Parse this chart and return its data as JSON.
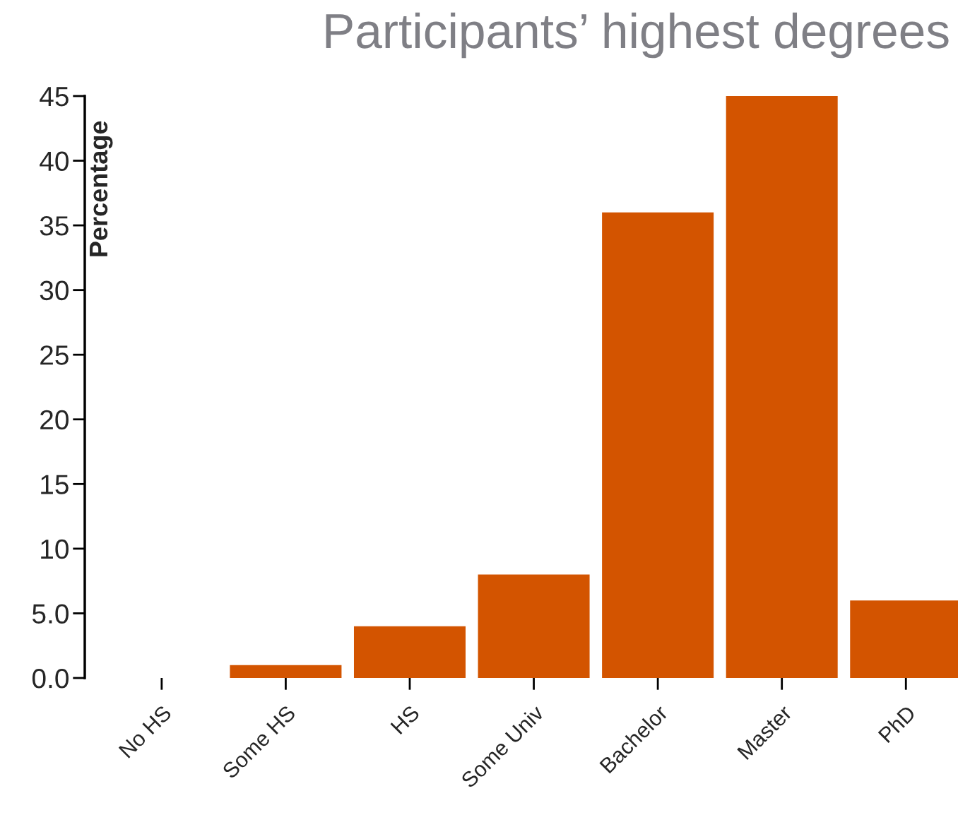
{
  "chart_data": {
    "type": "bar",
    "title": "Participants’ highest degrees",
    "ylabel": "Percentage",
    "categories": [
      "No HS",
      "Some HS",
      "HS",
      "Some Univ",
      "Bachelor",
      "Master",
      "PhD"
    ],
    "values": [
      0,
      1,
      4,
      8,
      36,
      45,
      6
    ],
    "color": "#d35400",
    "ylim": [
      0,
      45
    ],
    "yticks": [
      {
        "value": 0,
        "label": "0.0"
      },
      {
        "value": 5,
        "label": "5.0"
      },
      10,
      15,
      20,
      25,
      30,
      35,
      40,
      45
    ],
    "grid": false
  }
}
